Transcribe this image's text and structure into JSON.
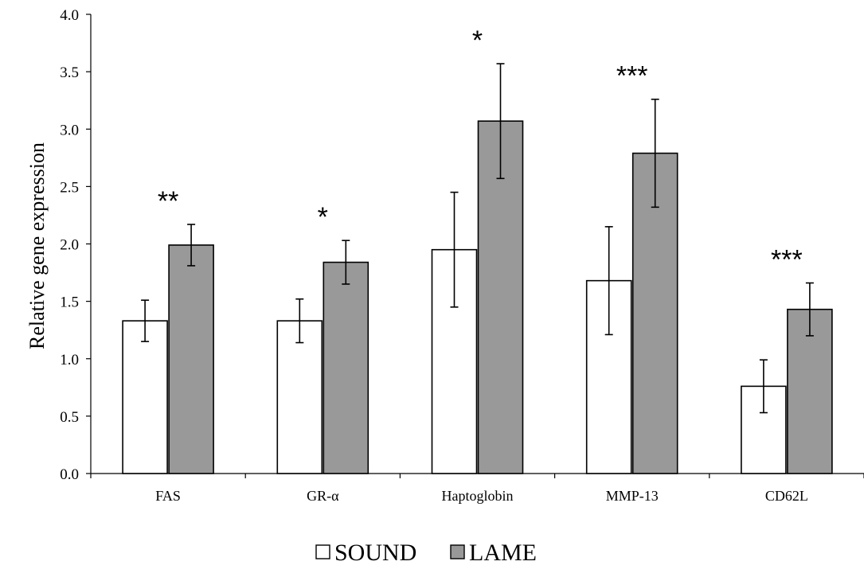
{
  "chart_data": {
    "type": "bar",
    "title": "",
    "xlabel": "",
    "ylabel": "Relative gene expression",
    "ylim": [
      0,
      4.0
    ],
    "ytick_step": 0.5,
    "yticks": [
      "0.0",
      "0.5",
      "1.0",
      "1.5",
      "2.0",
      "2.5",
      "3.0",
      "3.5",
      "4.0"
    ],
    "grid": false,
    "legend_position": "bottom",
    "categories": [
      "FAS",
      "GR-α",
      "Haptoglobin",
      "MMP-13",
      "CD62L"
    ],
    "series": [
      {
        "name": "SOUND",
        "color": "#ffffff",
        "values": [
          1.33,
          1.33,
          1.95,
          1.68,
          0.76
        ],
        "errors": [
          0.18,
          0.19,
          0.5,
          0.47,
          0.23
        ]
      },
      {
        "name": "LAME",
        "color": "#999999",
        "values": [
          1.99,
          1.84,
          3.07,
          2.79,
          1.43
        ],
        "errors": [
          0.18,
          0.19,
          0.5,
          0.47,
          0.23
        ]
      }
    ],
    "significance": [
      "**",
      "*",
      "*",
      "***",
      "***"
    ]
  }
}
